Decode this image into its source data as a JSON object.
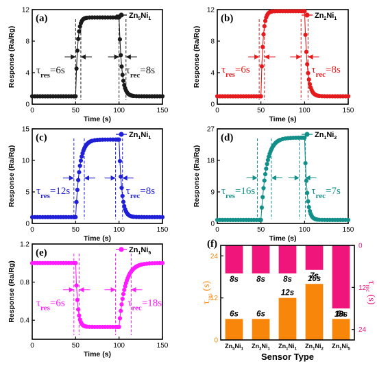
{
  "chart_data": [
    {
      "type": "scatter",
      "panel_label": "(a)",
      "legend": "Zn5Ni1",
      "legend_main": "Zn",
      "legend_sub1": "5",
      "legend_mid": "Ni",
      "legend_sub2": "1",
      "color": "#1a1a1a",
      "xlabel": "Time (s)",
      "ylabel": "Response (Ra/Rg)",
      "xlim": [
        0,
        150
      ],
      "ylim": [
        0,
        12
      ],
      "xticks": [
        0,
        50,
        100,
        150
      ],
      "yticks": [
        0,
        4,
        8,
        12
      ],
      "baseline": 1.0,
      "peak": 11.0,
      "on_time": 50,
      "off_time": 100,
      "t_res_label": "res",
      "t_res_value": "=6s",
      "t_rec_label": "rec",
      "t_rec_value": "=8s",
      "res_window": [
        50,
        56
      ],
      "rec_window": [
        100,
        108
      ],
      "ann_y": 6.0,
      "res_label_y": 3.9,
      "rec_label_y": 3.9,
      "rec_label_x": 108
    },
    {
      "type": "scatter",
      "panel_label": "(b)",
      "legend": "Zn2Ni1",
      "legend_main": "Zn",
      "legend_sub1": "2",
      "legend_mid": "Ni",
      "legend_sub2": "1",
      "color": "#e41a1c",
      "xlabel": "Time (s)",
      "ylabel": "Response (Ra/Rg)",
      "xlim": [
        0,
        150
      ],
      "ylim": [
        0,
        12
      ],
      "xticks": [
        0,
        50,
        100,
        150
      ],
      "yticks": [
        0,
        4,
        8,
        12
      ],
      "baseline": 1.0,
      "peak": 11.8,
      "on_time": 50,
      "off_time": 100,
      "t_res_label": "res",
      "t_res_value": "=6s",
      "t_rec_label": "rec",
      "t_rec_value": "=8s",
      "res_window": [
        48,
        54
      ],
      "rec_window": [
        96,
        104
      ],
      "ann_y": 6.0,
      "res_label_y": 4.0,
      "rec_label_y": 4.0,
      "rec_label_x": 108
    },
    {
      "type": "scatter",
      "panel_label": "(c)",
      "legend": "Zn1Ni1",
      "legend_main": "Zn",
      "legend_sub1": "1",
      "legend_mid": "Ni",
      "legend_sub2": "1",
      "color": "#1f1fd6",
      "xlabel": "Time (s)",
      "ylabel": "Response (Ra/Rg)",
      "xlim": [
        0,
        150
      ],
      "ylim": [
        0,
        15
      ],
      "xticks": [
        0,
        50,
        100,
        150
      ],
      "yticks": [
        0,
        5,
        10,
        15
      ],
      "baseline": 1.0,
      "peak": 13.3,
      "on_time": 50,
      "off_time": 100,
      "t_res_label": "res",
      "t_res_value": "=12s",
      "t_rec_label": "rec",
      "t_rec_value": "=8s",
      "res_window": [
        48,
        60
      ],
      "rec_window": [
        96,
        104
      ],
      "ann_y": 7.2,
      "res_label_y": 4.7,
      "rec_label_y": 4.7,
      "rec_label_x": 108
    },
    {
      "type": "scatter",
      "panel_label": "(d)",
      "legend": "Zn1Ni2",
      "legend_main": "Zn",
      "legend_sub1": "1",
      "legend_mid": "Ni",
      "legend_sub2": "2",
      "color": "#138f8a",
      "xlabel": "Time (s)",
      "ylabel": "Response (Ra/Rg)",
      "xlim": [
        0,
        150
      ],
      "ylim": [
        0,
        27
      ],
      "xticks": [
        0,
        50,
        100,
        150
      ],
      "yticks": [
        0,
        9,
        18,
        27
      ],
      "baseline": 1.0,
      "peak": 24.5,
      "on_time": 50,
      "off_time": 100,
      "t_res_label": "res",
      "t_res_value": "=16s",
      "t_rec_label": "rec",
      "t_rec_value": "=7s",
      "res_window": [
        46,
        62
      ],
      "rec_window": [
        94,
        101
      ],
      "ann_y": 13.0,
      "res_label_y": 8.4,
      "rec_label_y": 8.4,
      "rec_label_x": 108
    },
    {
      "type": "scatter",
      "panel_label": "(e)",
      "legend": "Zn1Ni5",
      "legend_main": "Zn",
      "legend_sub1": "1",
      "legend_mid": "Ni",
      "legend_sub2": "5",
      "color": "#ff1aff",
      "xlabel": "Time (s)",
      "ylabel": "Response (Ra/Rg)",
      "xlim": [
        0,
        150
      ],
      "ylim": [
        0.2,
        1.2
      ],
      "xticks": [
        0,
        50,
        100,
        150
      ],
      "yticks": [
        0.4,
        0.8,
        1.2
      ],
      "baseline": 1.0,
      "peak": 0.33,
      "on_time": 50,
      "off_time": 100,
      "t_res_label": "res",
      "t_res_value": "=6s",
      "t_rec_label": "rec",
      "t_rec_value": "=18s",
      "res_window": [
        48,
        54
      ],
      "rec_window": [
        96,
        114
      ],
      "ann_y": 0.72,
      "res_label_y": 0.55,
      "rec_label_y": 0.55,
      "rec_label_x": 110
    },
    {
      "type": "bar",
      "panel_label": "(f)",
      "categories": [
        "Zn5Ni1",
        "Zn2Ni1",
        "Zn1Ni1",
        "Zn1Ni2",
        "Zn1Ni5"
      ],
      "cat_subs": [
        [
          "5",
          "1"
        ],
        [
          "2",
          "1"
        ],
        [
          "1",
          "1"
        ],
        [
          "1",
          "2"
        ],
        [
          "1",
          "5"
        ]
      ],
      "xlabel": "Sensor Type",
      "ylabel_left_main": "τ",
      "ylabel_left_sub": "res",
      "ylabel_left_unit": " (s)",
      "ylabel_right_main": "τ",
      "ylabel_right_sub": "rec",
      "ylabel_right_unit": " (s)",
      "ylim_left": [
        0,
        27
      ],
      "yticks_left": [
        0,
        12,
        24
      ],
      "ylim_right": [
        27,
        0
      ],
      "yticks_right": [
        0,
        12,
        24
      ],
      "series": [
        {
          "name": "τres",
          "values": [
            6,
            6,
            12,
            16,
            6
          ],
          "labels": [
            "6s",
            "6s",
            "12s",
            "16s",
            "6s"
          ],
          "color": "#f7860a"
        },
        {
          "name": "τrec",
          "values": [
            8,
            8,
            8,
            7,
            18
          ],
          "labels": [
            "8s",
            "8s",
            "8s",
            "7s",
            "18s"
          ],
          "color": "#f0157b"
        }
      ]
    }
  ]
}
